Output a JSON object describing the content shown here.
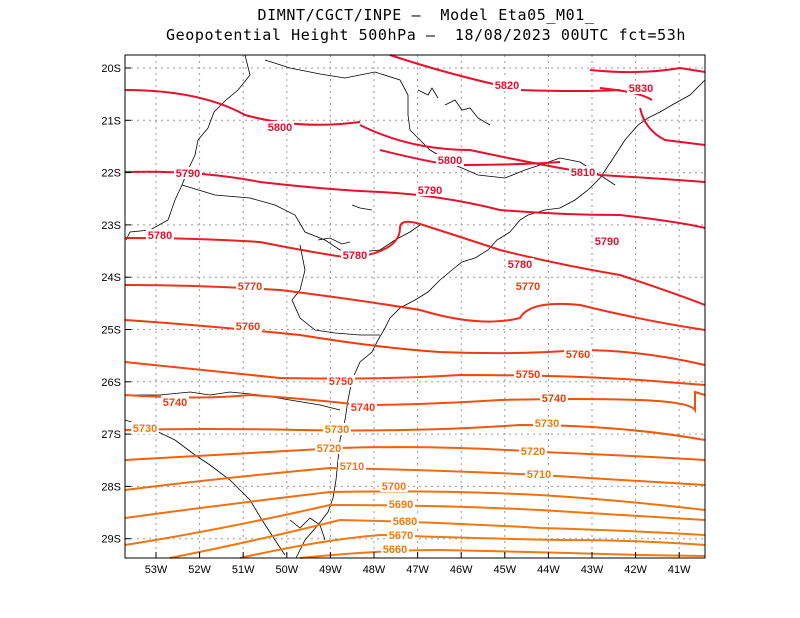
{
  "title": {
    "line1": "DIMNT/CGCT/INPE —  Model Eta05_M01_",
    "line2": "Geopotential Height 500hPa —  18/08/2023 00UTC fct=53h"
  },
  "axes": {
    "lat_labels": [
      "20S",
      "21S",
      "22S",
      "23S",
      "24S",
      "25S",
      "26S",
      "27S",
      "28S",
      "29S"
    ],
    "lon_labels": [
      "53W",
      "52W",
      "51W",
      "50W",
      "49W",
      "48W",
      "47W",
      "46W",
      "45W",
      "44W",
      "43W",
      "42W",
      "41W"
    ]
  },
  "colors": {
    "high": "#e8102e",
    "mid": "#f03a10",
    "low": "#f07a10",
    "coast": "#000000",
    "grid": "#9a9a9a"
  },
  "chart_data": {
    "type": "contour",
    "variable": "Geopotential Height 500hPa",
    "units": "m",
    "interval": 10,
    "lat_range": [
      -29.4,
      -19.8
    ],
    "lon_range": [
      -53.6,
      -40.5
    ],
    "contour_levels": [
      5660,
      5670,
      5680,
      5690,
      5700,
      5710,
      5720,
      5730,
      5740,
      5750,
      5760,
      5770,
      5780,
      5790,
      5800,
      5810,
      5820,
      5830
    ],
    "labels": [
      {
        "text": "5820"
      },
      {
        "text": "5830"
      },
      {
        "text": "5800"
      },
      {
        "text": "5810"
      },
      {
        "text": "5790"
      },
      {
        "text": "5800"
      },
      {
        "text": "5790"
      },
      {
        "text": "5790"
      },
      {
        "text": "5780"
      },
      {
        "text": "5780"
      },
      {
        "text": "5780"
      },
      {
        "text": "5770"
      },
      {
        "text": "5770"
      },
      {
        "text": "5760"
      },
      {
        "text": "5760"
      },
      {
        "text": "5750"
      },
      {
        "text": "5750"
      },
      {
        "text": "5740"
      },
      {
        "text": "5740"
      },
      {
        "text": "5740"
      },
      {
        "text": "5730"
      },
      {
        "text": "5730"
      },
      {
        "text": "5730"
      },
      {
        "text": "5720"
      },
      {
        "text": "5720"
      },
      {
        "text": "5710"
      },
      {
        "text": "5710"
      },
      {
        "text": "5700"
      },
      {
        "text": "5690"
      },
      {
        "text": "5680"
      },
      {
        "text": "5670"
      },
      {
        "text": "5660"
      }
    ]
  }
}
